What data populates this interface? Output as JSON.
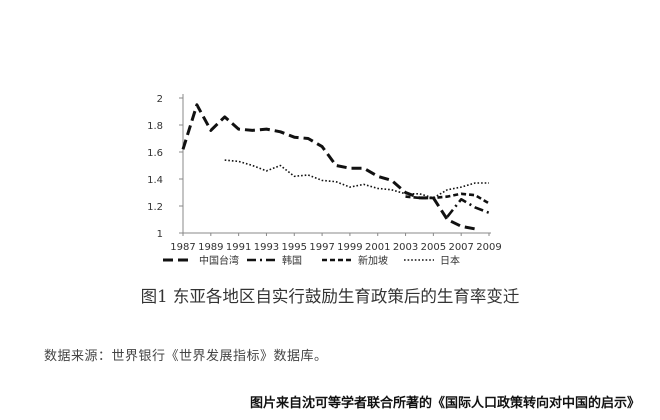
{
  "chart_data": {
    "type": "line",
    "x": [
      1987,
      1988,
      1989,
      1990,
      1991,
      1992,
      1993,
      1994,
      1995,
      1996,
      1997,
      1998,
      1999,
      2000,
      2001,
      2002,
      2003,
      2004,
      2005,
      2006,
      2007,
      2008,
      2009
    ],
    "xticks": [
      "1987",
      "1989",
      "1991",
      "1993",
      "1995",
      "1997",
      "1999",
      "2001",
      "2003",
      "2005",
      "2007",
      "2009"
    ],
    "yticks": [
      "1",
      "1.2",
      "1.4",
      "1.6",
      "1.8",
      "2"
    ],
    "ylim": [
      1,
      2
    ],
    "xlim": [
      1987,
      2009
    ],
    "grid": false,
    "legend_position": "bottom",
    "series": [
      {
        "name": "中国台湾",
        "style": "long-dash",
        "values": [
          1.62,
          1.95,
          1.76,
          1.86,
          1.77,
          1.76,
          1.77,
          1.75,
          1.71,
          1.7,
          1.64,
          1.5,
          1.48,
          1.48,
          1.42,
          1.39,
          1.3,
          1.26,
          1.26,
          1.1,
          1.05,
          1.03,
          null
        ]
      },
      {
        "name": "韩国",
        "style": "dash-dot",
        "values": [
          null,
          null,
          null,
          null,
          null,
          null,
          null,
          null,
          null,
          null,
          null,
          null,
          null,
          null,
          null,
          null,
          null,
          null,
          null,
          1.12,
          1.25,
          1.19,
          1.15
        ]
      },
      {
        "name": "新加坡",
        "style": "short-dash",
        "values": [
          null,
          null,
          null,
          null,
          null,
          null,
          null,
          null,
          null,
          null,
          null,
          null,
          null,
          null,
          null,
          null,
          1.27,
          1.26,
          1.26,
          1.27,
          1.29,
          1.28,
          1.22
        ]
      },
      {
        "name": "日本",
        "style": "dotted",
        "values": [
          null,
          null,
          null,
          1.54,
          1.53,
          1.5,
          1.46,
          1.5,
          1.42,
          1.43,
          1.39,
          1.38,
          1.34,
          1.36,
          1.33,
          1.32,
          1.29,
          1.29,
          1.26,
          1.32,
          1.34,
          1.37,
          1.37
        ]
      }
    ]
  },
  "caption": "图1  东亚各地区自实行鼓励生育政策后的生育率变迁",
  "source_note": "数据来源：世界银行《世界发展指标》数据库。",
  "credit": "图片来自沈可等学者联合所著的《国际人口政策转向对中国的启示》",
  "colors": {
    "line": "#111111",
    "axis": "#888888"
  }
}
